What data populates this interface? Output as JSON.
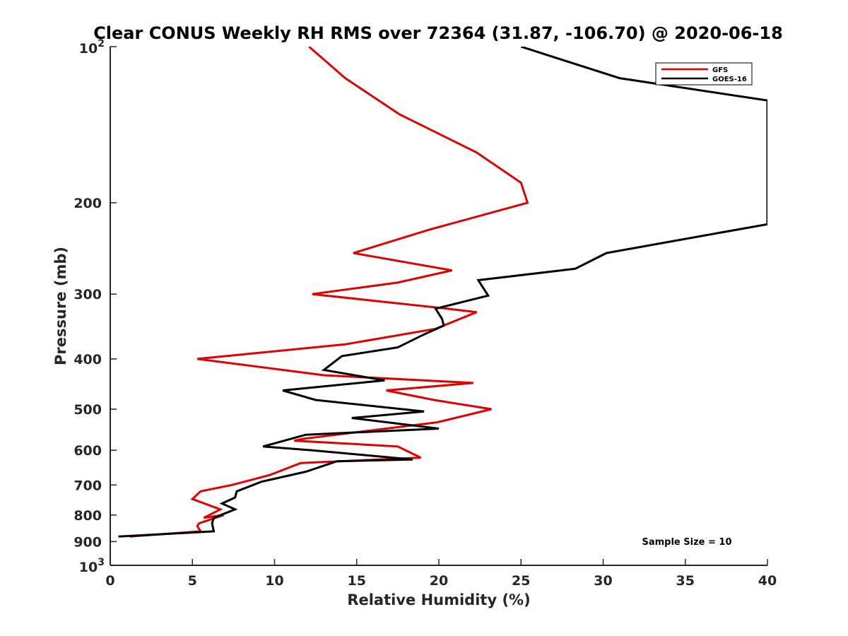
{
  "chart_data": {
    "type": "line",
    "title": "Clear CONUS Weekly RH RMS over 72364 (31.87, -106.70) @ 2020-06-18",
    "xlabel": "Relative Humidity (%)",
    "ylabel": "Pressure (mb)",
    "xlim": [
      0,
      40
    ],
    "ylim": [
      100,
      1000
    ],
    "y_scale": "log",
    "y_reversed": true,
    "x_ticks": [
      "0",
      "5",
      "10",
      "15",
      "20",
      "25",
      "30",
      "35",
      "40"
    ],
    "y_ticks": [
      {
        "value": 100,
        "base": "10",
        "exp": "2"
      },
      {
        "value": 200,
        "label": "200"
      },
      {
        "value": 300,
        "label": "300"
      },
      {
        "value": 400,
        "label": "400"
      },
      {
        "value": 500,
        "label": "500"
      },
      {
        "value": 600,
        "label": "600"
      },
      {
        "value": 700,
        "label": "700"
      },
      {
        "value": 800,
        "label": "800"
      },
      {
        "value": 900,
        "label": "900"
      },
      {
        "value": 1000,
        "base": "10",
        "exp": "3"
      }
    ],
    "legend_position": "top-right",
    "annotation": "Sample Size = 10",
    "series": [
      {
        "name": "GFS",
        "color": "#e00000",
        "points": [
          [
            12.1,
            100
          ],
          [
            14.3,
            115
          ],
          [
            17.6,
            135
          ],
          [
            22.3,
            160
          ],
          [
            25.0,
            183
          ],
          [
            25.4,
            200
          ],
          [
            19.5,
            225
          ],
          [
            14.8,
            250
          ],
          [
            20.8,
            270
          ],
          [
            17.5,
            285
          ],
          [
            12.3,
            300
          ],
          [
            20.5,
            320
          ],
          [
            22.3,
            325
          ],
          [
            19.8,
            350
          ],
          [
            14.3,
            375
          ],
          [
            5.3,
            400
          ],
          [
            13.0,
            430
          ],
          [
            22.1,
            445
          ],
          [
            16.8,
            460
          ],
          [
            19.7,
            480
          ],
          [
            23.2,
            500
          ],
          [
            19.9,
            530
          ],
          [
            11.8,
            570
          ],
          [
            11.2,
            575
          ],
          [
            17.5,
            590
          ],
          [
            18.9,
            620
          ],
          [
            11.6,
            635
          ],
          [
            9.7,
            670
          ],
          [
            7.4,
            700
          ],
          [
            5.5,
            720
          ],
          [
            5.0,
            745
          ],
          [
            6.7,
            780
          ],
          [
            5.7,
            810
          ],
          [
            6.9,
            800
          ],
          [
            5.4,
            830
          ],
          [
            5.3,
            840
          ],
          [
            5.5,
            860
          ],
          [
            1.2,
            880
          ]
        ]
      },
      {
        "name": "GOES-16",
        "color": "#000000",
        "points": [
          [
            25.0,
            100
          ],
          [
            31.0,
            115
          ],
          [
            40.0,
            127
          ],
          [
            40.0,
            220
          ],
          [
            30.2,
            250
          ],
          [
            28.3,
            268
          ],
          [
            22.4,
            282
          ],
          [
            23.0,
            302
          ],
          [
            19.8,
            320
          ],
          [
            20.2,
            335
          ],
          [
            20.3,
            345
          ],
          [
            19.0,
            360
          ],
          [
            17.5,
            380
          ],
          [
            14.1,
            395
          ],
          [
            13.0,
            420
          ],
          [
            16.7,
            440
          ],
          [
            10.5,
            460
          ],
          [
            12.5,
            480
          ],
          [
            19.1,
            505
          ],
          [
            14.7,
            520
          ],
          [
            20.0,
            545
          ],
          [
            11.9,
            560
          ],
          [
            9.3,
            590
          ],
          [
            12.3,
            600
          ],
          [
            18.4,
            625
          ],
          [
            13.8,
            630
          ],
          [
            11.9,
            660
          ],
          [
            9.2,
            690
          ],
          [
            7.7,
            720
          ],
          [
            7.6,
            740
          ],
          [
            6.8,
            760
          ],
          [
            7.6,
            780
          ],
          [
            6.3,
            810
          ],
          [
            6.2,
            830
          ],
          [
            6.3,
            860
          ],
          [
            0.5,
            880
          ]
        ]
      }
    ]
  }
}
